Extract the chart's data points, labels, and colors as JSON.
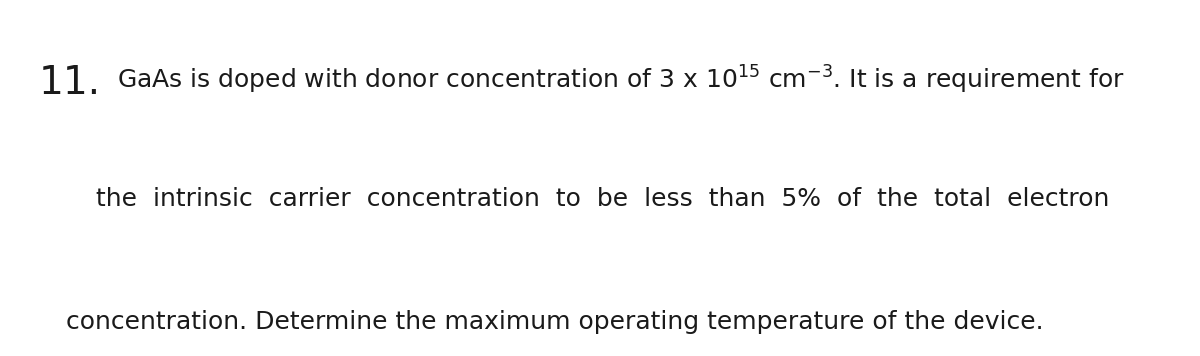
{
  "background_color": "#ffffff",
  "number": "11.",
  "number_fontsize": 28,
  "text_fontsize": 18,
  "line1_prefix": " GaAs is doped with donor concentration of 3 x 10",
  "line1_sup1": "15",
  "line1_mid": " cm",
  "line1_sup2": "−3",
  "line1_suffix": ". It is a requirement for",
  "line2": "the  intrinsic  carrier  concentration  to  be  less  than  5%  of  the  total  electron",
  "line3": "concentration. Determine the maximum operating temperature of the device.",
  "text_color": "#1a1a1a",
  "fig_width": 12.0,
  "fig_height": 3.56
}
